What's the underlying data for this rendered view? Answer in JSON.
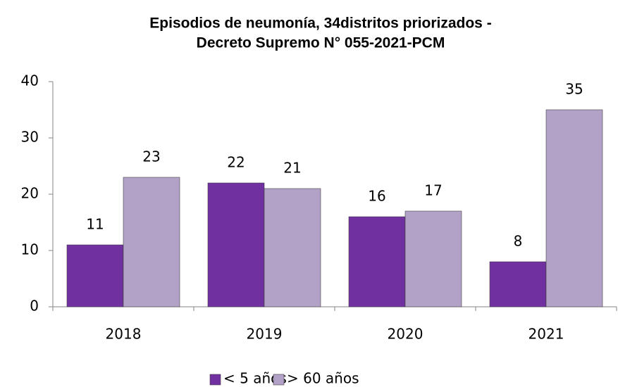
{
  "chart_data": {
    "type": "bar",
    "title": [
      "Episodios de neumonía, 34distritos priorizados -",
      "Decreto Supremo N° 055-2021-PCM"
    ],
    "categories": [
      "2018",
      "2019",
      "2020",
      "2021"
    ],
    "series": [
      {
        "name": "< 5 años",
        "color": "#7030a0",
        "values": [
          11,
          22,
          16,
          8
        ]
      },
      {
        "name": "> 60 años",
        "color": "#b3a2c7",
        "values": [
          23,
          21,
          17,
          35
        ]
      }
    ],
    "ylim": [
      0,
      40
    ],
    "yticks": [
      0,
      10,
      20,
      30,
      40
    ],
    "grid": false,
    "legend": "bottom"
  }
}
